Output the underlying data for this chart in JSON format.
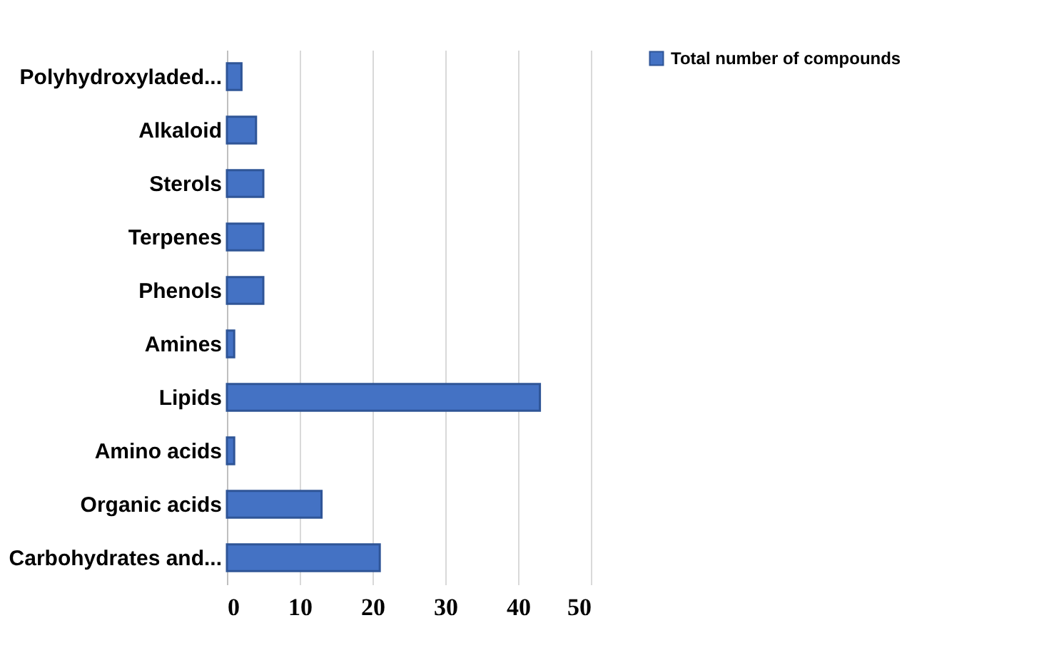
{
  "chart_data": {
    "type": "bar",
    "orientation": "horizontal",
    "categories": [
      "Polyhydroxyladed...",
      "Alkaloid",
      "Sterols",
      "Terpenes",
      "Phenols",
      "Amines",
      "Lipids",
      "Amino acids",
      "Organic acids",
      "Carbohydrates and..."
    ],
    "series": [
      {
        "name": "Total number of compounds",
        "color": "#4472c4",
        "values": [
          2,
          4,
          5,
          5,
          5,
          1,
          43,
          1,
          13,
          21
        ]
      }
    ],
    "xlim": [
      0,
      50
    ],
    "xticks": [
      0,
      10,
      20,
      30,
      40,
      50
    ],
    "grid": "x",
    "legend": "top right"
  }
}
